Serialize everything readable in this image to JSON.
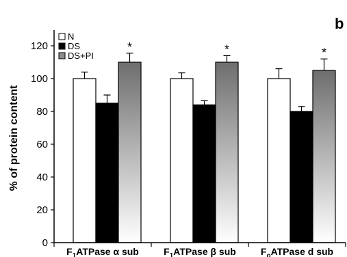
{
  "panel_label": "b",
  "chart_data": {
    "type": "bar",
    "ylabel": "% of protein content",
    "ylim": [
      0,
      120
    ],
    "yticks": [
      0,
      20,
      40,
      60,
      80,
      100,
      120
    ],
    "categories": [
      {
        "main": "F",
        "sub": "1",
        "rest": "ATPase α sub"
      },
      {
        "main": "F",
        "sub": "1",
        "rest": "ATPase β sub"
      },
      {
        "main": "F",
        "sub": "o",
        "rest": "ATPase d sub"
      }
    ],
    "series": [
      {
        "name": "N",
        "style": "white",
        "values": [
          100,
          100,
          100
        ],
        "errors": [
          4,
          3.5,
          6
        ],
        "marks": [
          "",
          "",
          ""
        ]
      },
      {
        "name": "DS",
        "style": "black",
        "values": [
          85,
          84,
          80
        ],
        "errors": [
          5,
          2.5,
          3
        ],
        "marks": [
          "",
          "",
          ""
        ]
      },
      {
        "name": "DS+PI",
        "style": "gradient",
        "values": [
          110,
          110,
          105
        ],
        "errors": [
          5.5,
          4,
          7
        ],
        "marks": [
          "*",
          "*",
          "*"
        ]
      }
    ],
    "legend_position": "top-left",
    "colors": {
      "outline": "#000000",
      "dark_fill": "#000000",
      "light_fill": "#ffffff",
      "gradient_top": "#6e6e6e",
      "gradient_bottom": "#ffffff"
    }
  }
}
